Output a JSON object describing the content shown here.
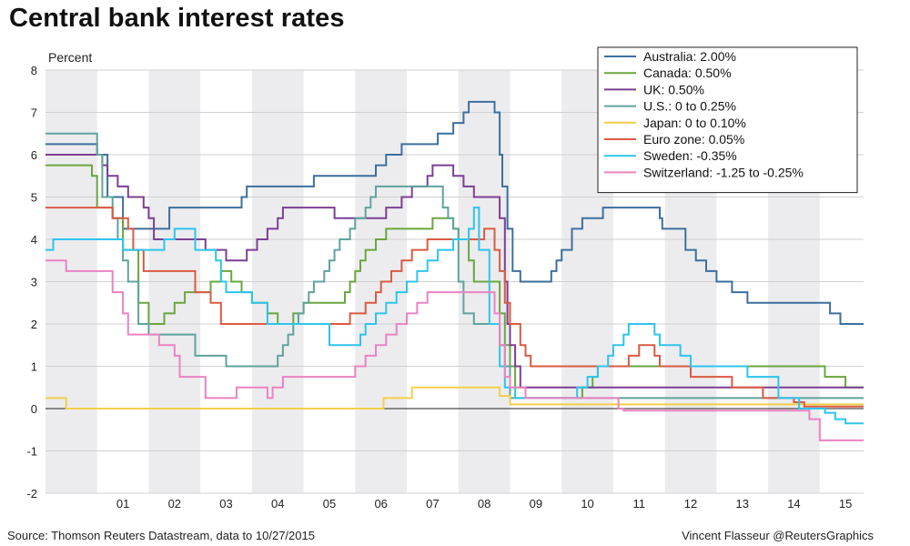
{
  "page": {
    "title": "Central bank interest rates",
    "source": "Source: Thomson Reuters Datastream, data to 10/27/2015",
    "credit": "Vincent Flasseur @ReutersGraphics"
  },
  "chart_data": {
    "type": "line",
    "title": "Central bank interest rates",
    "xlabel": "",
    "ylabel": "Percent",
    "xlim": [
      2000.0,
      2015.85
    ],
    "ylim": [
      -2,
      8
    ],
    "yticks": [
      -2,
      -1,
      0,
      1,
      2,
      3,
      4,
      5,
      6,
      7,
      8
    ],
    "x_ticks": [
      {
        "x": 2001.5,
        "label": "01"
      },
      {
        "x": 2002.5,
        "label": "02"
      },
      {
        "x": 2003.5,
        "label": "03"
      },
      {
        "x": 2004.5,
        "label": "04"
      },
      {
        "x": 2005.5,
        "label": "05"
      },
      {
        "x": 2006.5,
        "label": "06"
      },
      {
        "x": 2007.5,
        "label": "07"
      },
      {
        "x": 2008.5,
        "label": "08"
      },
      {
        "x": 2009.5,
        "label": "09"
      },
      {
        "x": 2010.5,
        "label": "10"
      },
      {
        "x": 2011.5,
        "label": "11"
      },
      {
        "x": 2012.5,
        "label": "12"
      },
      {
        "x": 2013.5,
        "label": "13"
      },
      {
        "x": 2014.5,
        "label": "14"
      },
      {
        "x": 2015.5,
        "label": "15"
      }
    ],
    "shaded_years": [
      2000,
      2002,
      2004,
      2006,
      2008,
      2010,
      2012,
      2014
    ],
    "grid": true,
    "legend_position": "top-right",
    "series": [
      {
        "name": "Australia: 2.00%",
        "color": "#3d6f9e",
        "points": [
          [
            2000.0,
            6.25
          ],
          [
            2000.3,
            6.25
          ],
          [
            2001.0,
            6.0
          ],
          [
            2001.2,
            5.0
          ],
          [
            2001.5,
            4.25
          ],
          [
            2002.0,
            4.25
          ],
          [
            2002.4,
            4.75
          ],
          [
            2003.8,
            5.0
          ],
          [
            2003.9,
            5.25
          ],
          [
            2005.2,
            5.5
          ],
          [
            2006.4,
            5.75
          ],
          [
            2006.6,
            6.0
          ],
          [
            2006.9,
            6.25
          ],
          [
            2007.6,
            6.5
          ],
          [
            2007.9,
            6.75
          ],
          [
            2008.1,
            7.0
          ],
          [
            2008.2,
            7.25
          ],
          [
            2008.7,
            7.0
          ],
          [
            2008.8,
            6.0
          ],
          [
            2008.85,
            5.25
          ],
          [
            2008.95,
            4.25
          ],
          [
            2009.05,
            3.25
          ],
          [
            2009.2,
            3.0
          ],
          [
            2009.8,
            3.25
          ],
          [
            2009.9,
            3.5
          ],
          [
            2010.0,
            3.75
          ],
          [
            2010.2,
            4.25
          ],
          [
            2010.4,
            4.5
          ],
          [
            2010.8,
            4.75
          ],
          [
            2011.9,
            4.5
          ],
          [
            2011.95,
            4.25
          ],
          [
            2012.4,
            3.75
          ],
          [
            2012.6,
            3.5
          ],
          [
            2012.8,
            3.25
          ],
          [
            2013.0,
            3.0
          ],
          [
            2013.3,
            2.75
          ],
          [
            2013.6,
            2.5
          ],
          [
            2015.2,
            2.25
          ],
          [
            2015.4,
            2.0
          ],
          [
            2015.85,
            2.0
          ]
        ]
      },
      {
        "name": "Canada: 0.50%",
        "color": "#6aa63e",
        "points": [
          [
            2000.0,
            5.75
          ],
          [
            2000.3,
            5.75
          ],
          [
            2000.9,
            5.5
          ],
          [
            2001.0,
            4.75
          ],
          [
            2001.3,
            4.5
          ],
          [
            2001.5,
            3.75
          ],
          [
            2001.8,
            2.5
          ],
          [
            2002.0,
            2.0
          ],
          [
            2002.3,
            2.25
          ],
          [
            2002.5,
            2.5
          ],
          [
            2002.7,
            2.75
          ],
          [
            2003.2,
            3.0
          ],
          [
            2003.4,
            3.25
          ],
          [
            2003.6,
            3.0
          ],
          [
            2003.8,
            2.75
          ],
          [
            2004.0,
            2.5
          ],
          [
            2004.3,
            2.25
          ],
          [
            2004.5,
            2.0
          ],
          [
            2004.8,
            2.25
          ],
          [
            2005.0,
            2.5
          ],
          [
            2005.8,
            2.75
          ],
          [
            2005.9,
            3.0
          ],
          [
            2006.0,
            3.25
          ],
          [
            2006.1,
            3.5
          ],
          [
            2006.2,
            3.75
          ],
          [
            2006.4,
            4.0
          ],
          [
            2006.6,
            4.25
          ],
          [
            2007.5,
            4.5
          ],
          [
            2007.9,
            4.25
          ],
          [
            2008.0,
            4.0
          ],
          [
            2008.2,
            3.5
          ],
          [
            2008.3,
            3.0
          ],
          [
            2008.8,
            2.25
          ],
          [
            2008.9,
            1.5
          ],
          [
            2009.0,
            1.0
          ],
          [
            2009.1,
            0.5
          ],
          [
            2009.3,
            0.25
          ],
          [
            2010.4,
            0.5
          ],
          [
            2010.6,
            0.75
          ],
          [
            2010.7,
            1.0
          ],
          [
            2015.0,
            1.0
          ],
          [
            2015.1,
            0.75
          ],
          [
            2015.5,
            0.5
          ],
          [
            2015.85,
            0.5
          ]
        ]
      },
      {
        "name": "UK: 0.50%",
        "color": "#7c3f93",
        "points": [
          [
            2000.0,
            6.0
          ],
          [
            2000.2,
            6.0
          ],
          [
            2001.1,
            5.75
          ],
          [
            2001.2,
            5.5
          ],
          [
            2001.4,
            5.25
          ],
          [
            2001.6,
            5.0
          ],
          [
            2001.9,
            4.75
          ],
          [
            2002.0,
            4.5
          ],
          [
            2002.1,
            4.0
          ],
          [
            2003.1,
            3.75
          ],
          [
            2003.5,
            3.5
          ],
          [
            2003.9,
            3.75
          ],
          [
            2004.1,
            4.0
          ],
          [
            2004.3,
            4.25
          ],
          [
            2004.5,
            4.5
          ],
          [
            2004.6,
            4.75
          ],
          [
            2005.6,
            4.5
          ],
          [
            2006.6,
            4.75
          ],
          [
            2006.9,
            5.0
          ],
          [
            2007.1,
            5.25
          ],
          [
            2007.4,
            5.5
          ],
          [
            2007.5,
            5.75
          ],
          [
            2007.9,
            5.5
          ],
          [
            2008.1,
            5.25
          ],
          [
            2008.3,
            5.0
          ],
          [
            2008.8,
            4.5
          ],
          [
            2008.9,
            3.0
          ],
          [
            2008.95,
            2.0
          ],
          [
            2009.0,
            1.5
          ],
          [
            2009.1,
            1.0
          ],
          [
            2009.2,
            0.5
          ],
          [
            2015.85,
            0.5
          ]
        ]
      },
      {
        "name": "U.S.: 0 to 0.25%",
        "color": "#5fa39c",
        "points": [
          [
            2000.0,
            6.5
          ],
          [
            2000.4,
            6.5
          ],
          [
            2001.0,
            6.0
          ],
          [
            2001.1,
            5.0
          ],
          [
            2001.3,
            4.5
          ],
          [
            2001.4,
            4.0
          ],
          [
            2001.5,
            3.5
          ],
          [
            2001.6,
            3.0
          ],
          [
            2001.8,
            2.0
          ],
          [
            2002.0,
            1.75
          ],
          [
            2002.9,
            1.25
          ],
          [
            2003.5,
            1.0
          ],
          [
            2004.5,
            1.25
          ],
          [
            2004.6,
            1.5
          ],
          [
            2004.7,
            1.75
          ],
          [
            2004.8,
            2.0
          ],
          [
            2004.9,
            2.25
          ],
          [
            2005.0,
            2.5
          ],
          [
            2005.1,
            2.75
          ],
          [
            2005.2,
            3.0
          ],
          [
            2005.4,
            3.25
          ],
          [
            2005.5,
            3.5
          ],
          [
            2005.6,
            3.75
          ],
          [
            2005.7,
            4.0
          ],
          [
            2005.9,
            4.25
          ],
          [
            2006.0,
            4.5
          ],
          [
            2006.2,
            4.75
          ],
          [
            2006.3,
            5.0
          ],
          [
            2006.4,
            5.25
          ],
          [
            2007.7,
            4.75
          ],
          [
            2007.8,
            4.5
          ],
          [
            2007.9,
            4.25
          ],
          [
            2008.0,
            3.0
          ],
          [
            2008.1,
            2.25
          ],
          [
            2008.3,
            2.0
          ],
          [
            2008.8,
            1.5
          ],
          [
            2008.9,
            1.0
          ],
          [
            2009.0,
            0.25
          ],
          [
            2015.85,
            0.25
          ]
        ]
      },
      {
        "name": "Japan: 0 to 0.10%",
        "color": "#f2cf4a",
        "points": [
          [
            2000.0,
            0.25
          ],
          [
            2000.35,
            0.25
          ],
          [
            2000.4,
            0.0
          ],
          [
            2006.5,
            0.0
          ],
          [
            2006.55,
            0.25
          ],
          [
            2007.1,
            0.5
          ],
          [
            2008.8,
            0.3
          ],
          [
            2009.0,
            0.1
          ],
          [
            2015.85,
            0.1
          ]
        ]
      },
      {
        "name": "Euro zone: 0.05%",
        "color": "#d95b43",
        "points": [
          [
            2000.0,
            4.75
          ],
          [
            2000.5,
            4.75
          ],
          [
            2001.3,
            4.5
          ],
          [
            2001.6,
            4.25
          ],
          [
            2001.7,
            3.75
          ],
          [
            2001.9,
            3.25
          ],
          [
            2002.9,
            2.75
          ],
          [
            2003.2,
            2.5
          ],
          [
            2003.4,
            2.0
          ],
          [
            2005.9,
            2.25
          ],
          [
            2006.2,
            2.5
          ],
          [
            2006.4,
            2.75
          ],
          [
            2006.5,
            3.0
          ],
          [
            2006.7,
            3.25
          ],
          [
            2006.9,
            3.5
          ],
          [
            2007.1,
            3.75
          ],
          [
            2007.4,
            4.0
          ],
          [
            2008.5,
            4.25
          ],
          [
            2008.7,
            3.75
          ],
          [
            2008.8,
            3.25
          ],
          [
            2008.9,
            2.5
          ],
          [
            2009.0,
            2.0
          ],
          [
            2009.2,
            1.5
          ],
          [
            2009.3,
            1.25
          ],
          [
            2009.4,
            1.0
          ],
          [
            2011.3,
            1.25
          ],
          [
            2011.5,
            1.5
          ],
          [
            2011.8,
            1.25
          ],
          [
            2011.9,
            1.0
          ],
          [
            2012.5,
            0.75
          ],
          [
            2013.3,
            0.5
          ],
          [
            2013.9,
            0.25
          ],
          [
            2014.5,
            0.15
          ],
          [
            2014.7,
            0.05
          ],
          [
            2015.85,
            0.05
          ]
        ]
      },
      {
        "name": "Sweden: -0.35%",
        "color": "#2ec4ec",
        "points": [
          [
            2000.0,
            3.75
          ],
          [
            2000.15,
            4.0
          ],
          [
            2001.5,
            3.75
          ],
          [
            2002.3,
            4.0
          ],
          [
            2002.5,
            4.25
          ],
          [
            2002.9,
            3.75
          ],
          [
            2003.3,
            3.5
          ],
          [
            2003.4,
            3.0
          ],
          [
            2003.5,
            2.75
          ],
          [
            2004.0,
            2.5
          ],
          [
            2004.3,
            2.0
          ],
          [
            2005.5,
            1.5
          ],
          [
            2006.1,
            1.75
          ],
          [
            2006.2,
            2.0
          ],
          [
            2006.4,
            2.25
          ],
          [
            2006.6,
            2.5
          ],
          [
            2006.8,
            2.75
          ],
          [
            2007.0,
            3.0
          ],
          [
            2007.2,
            3.25
          ],
          [
            2007.4,
            3.5
          ],
          [
            2007.6,
            3.75
          ],
          [
            2007.9,
            4.0
          ],
          [
            2008.2,
            4.25
          ],
          [
            2008.3,
            4.75
          ],
          [
            2008.4,
            3.75
          ],
          [
            2008.6,
            2.0
          ],
          [
            2008.8,
            1.0
          ],
          [
            2008.9,
            0.5
          ],
          [
            2009.1,
            0.25
          ],
          [
            2010.3,
            0.5
          ],
          [
            2010.5,
            0.75
          ],
          [
            2010.7,
            1.0
          ],
          [
            2010.9,
            1.25
          ],
          [
            2011.0,
            1.5
          ],
          [
            2011.2,
            1.75
          ],
          [
            2011.3,
            2.0
          ],
          [
            2011.8,
            1.75
          ],
          [
            2011.9,
            1.5
          ],
          [
            2012.3,
            1.25
          ],
          [
            2012.5,
            1.0
          ],
          [
            2013.6,
            0.75
          ],
          [
            2014.2,
            0.25
          ],
          [
            2014.6,
            0.0
          ],
          [
            2015.1,
            -0.1
          ],
          [
            2015.3,
            -0.25
          ],
          [
            2015.5,
            -0.35
          ],
          [
            2015.85,
            -0.35
          ]
        ]
      },
      {
        "name": "Switzerland: -1.25 to -0.25%",
        "color": "#ea83c2",
        "points": [
          [
            2000.0,
            3.5
          ],
          [
            2000.4,
            3.25
          ],
          [
            2001.3,
            2.75
          ],
          [
            2001.5,
            2.25
          ],
          [
            2001.6,
            1.75
          ],
          [
            2002.2,
            1.5
          ],
          [
            2002.5,
            1.25
          ],
          [
            2002.6,
            0.75
          ],
          [
            2003.1,
            0.25
          ],
          [
            2003.5,
            0.25
          ],
          [
            2003.7,
            0.5
          ],
          [
            2004.3,
            0.25
          ],
          [
            2004.4,
            0.5
          ],
          [
            2004.6,
            0.75
          ],
          [
            2005.0,
            0.75
          ],
          [
            2005.8,
            0.75
          ],
          [
            2006.0,
            1.0
          ],
          [
            2006.2,
            1.25
          ],
          [
            2006.4,
            1.5
          ],
          [
            2006.6,
            1.75
          ],
          [
            2006.8,
            2.0
          ],
          [
            2007.0,
            2.25
          ],
          [
            2007.2,
            2.5
          ],
          [
            2007.4,
            2.75
          ],
          [
            2008.7,
            2.25
          ],
          [
            2008.8,
            1.5
          ],
          [
            2008.9,
            0.75
          ],
          [
            2009.0,
            0.5
          ],
          [
            2009.3,
            0.25
          ],
          [
            2011.1,
            0.0
          ],
          [
            2011.2,
            -0.05
          ],
          [
            2014.8,
            -0.25
          ],
          [
            2015.0,
            -0.75
          ],
          [
            2015.85,
            -0.75
          ]
        ]
      }
    ]
  }
}
